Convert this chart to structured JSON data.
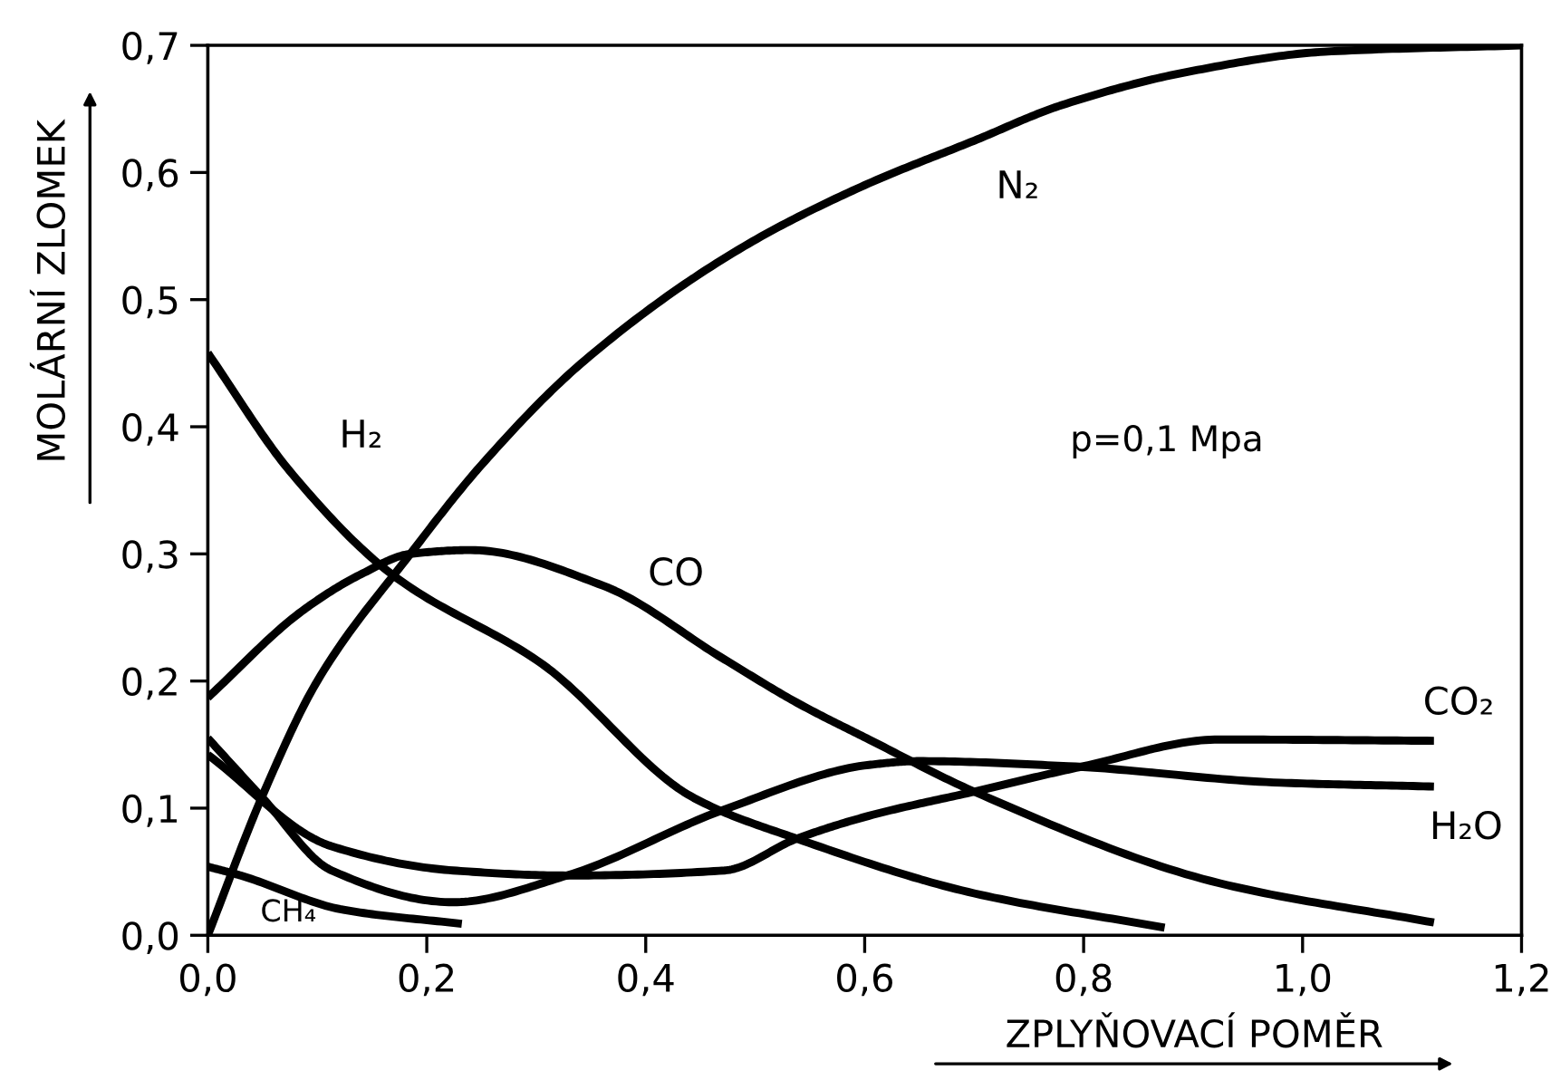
{
  "chart_data": {
    "type": "line",
    "xlabel": "ZPLYŇOVACÍ POMĚR",
    "ylabel": "MOLÁRNÍ ZLOMEK",
    "annotations": [
      "p=0,1 Mpa"
    ],
    "xlim": [
      0,
      1.2
    ],
    "ylim": [
      0,
      0.7
    ],
    "xticks": [
      {
        "value": 0,
        "label": "0,0"
      },
      {
        "value": 0.2,
        "label": "0,2"
      },
      {
        "value": 0.4,
        "label": "0,4"
      },
      {
        "value": 0.6,
        "label": "0,6"
      },
      {
        "value": 0.8,
        "label": "0,8"
      },
      {
        "value": 1.0,
        "label": "1,0"
      },
      {
        "value": 1.2,
        "label": "1,2"
      }
    ],
    "yticks": [
      {
        "value": 0,
        "label": "0,0"
      },
      {
        "value": 0.1,
        "label": "0,1"
      },
      {
        "value": 0.2,
        "label": "0,2"
      },
      {
        "value": 0.3,
        "label": "0,3"
      },
      {
        "value": 0.4,
        "label": "0,4"
      },
      {
        "value": 0.5,
        "label": "0,5"
      },
      {
        "value": 0.6,
        "label": "0,6"
      },
      {
        "value": 0.7,
        "label": "0,7"
      }
    ],
    "grid": false,
    "legend": false,
    "marker": "none",
    "line_style": "solid",
    "series": [
      {
        "name": "N₂",
        "color": "#000000",
        "x": [
          0,
          0.05,
          0.1,
          0.185,
          0.25,
          0.344,
          0.49,
          0.6,
          0.7,
          0.78,
          0.9,
          1.02,
          1.2
        ],
        "values": [
          0,
          0.11,
          0.2,
          0.3,
          0.37,
          0.452,
          0.542,
          0.59,
          0.625,
          0.653,
          0.68,
          0.695,
          0.7
        ]
      },
      {
        "name": "H₂",
        "color": "#000000",
        "x": [
          0,
          0.075,
          0.168,
          0.306,
          0.444,
          0.538,
          0.7,
          0.874
        ],
        "values": [
          0.458,
          0.365,
          0.284,
          0.213,
          0.108,
          0.076,
          0.033,
          0.006
        ]
      },
      {
        "name": "CO",
        "color": "#000000",
        "x": [
          0,
          0.086,
          0.14,
          0.185,
          0.24,
          0.361,
          0.47,
          0.538,
          0.604,
          0.7,
          0.924,
          1.12
        ],
        "values": [
          0.187,
          0.255,
          0.284,
          0.3,
          0.303,
          0.275,
          0.218,
          0.183,
          0.154,
          0.113,
          0.041,
          0.01
        ]
      },
      {
        "name": "CO₂",
        "color": "#000000",
        "x": [
          0,
          0.113,
          0.224,
          0.328,
          0.472,
          0.538,
          0.604,
          0.7,
          0.8,
          0.924,
          1.12
        ],
        "values": [
          0.142,
          0.07,
          0.051,
          0.047,
          0.051,
          0.076,
          0.094,
          0.113,
          0.133,
          0.154,
          0.153
        ]
      },
      {
        "name": "H₂O",
        "color": "#000000",
        "x": [
          0,
          0.05,
          0.113,
          0.224,
          0.328,
          0.472,
          0.604,
          0.649,
          0.786,
          0.98,
          1.12
        ],
        "values": [
          0.155,
          0.108,
          0.051,
          0.026,
          0.047,
          0.099,
          0.134,
          0.137,
          0.133,
          0.12,
          0.117
        ]
      },
      {
        "name": "CH₄",
        "color": "#000000",
        "x": [
          0,
          0.03,
          0.124,
          0.232
        ],
        "values": [
          0.054,
          0.047,
          0.02,
          0.009
        ]
      }
    ]
  }
}
